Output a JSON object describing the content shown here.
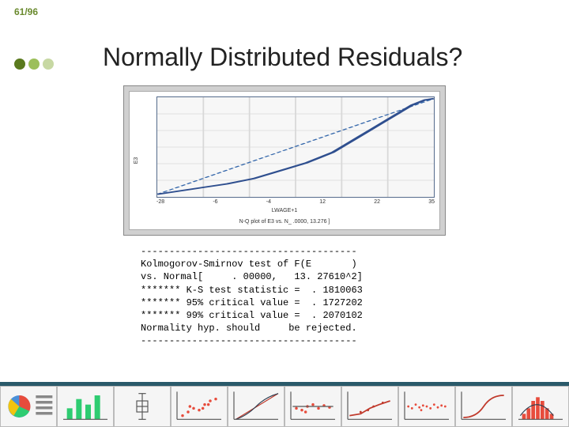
{
  "page_number": "61/96",
  "title": "Normally Distributed Residuals?",
  "dots": {
    "colors": [
      "#5a7a1e",
      "#9cbf5a",
      "#c7d8a3"
    ]
  },
  "chart": {
    "type": "line",
    "x_label": "LWAGE+1",
    "y_label": "E3",
    "caption": "N-Q plot of E3  vs. N_ .0000, 13.276 ]",
    "x_ticks": [
      "-28",
      "-6",
      "-4",
      "12",
      "22",
      "35"
    ],
    "xlim": [
      -28,
      35
    ],
    "ylim": [
      -3,
      35
    ],
    "curve": [
      [
        -28,
        -2
      ],
      [
        -20,
        0
      ],
      [
        -12,
        2
      ],
      [
        -6,
        4
      ],
      [
        -2,
        6
      ],
      [
        2,
        8
      ],
      [
        6,
        10
      ],
      [
        9,
        12
      ],
      [
        12,
        14
      ],
      [
        15,
        17
      ],
      [
        18,
        20
      ],
      [
        21,
        23
      ],
      [
        24,
        26
      ],
      [
        27,
        29
      ],
      [
        30,
        32
      ],
      [
        33,
        34
      ],
      [
        35,
        34.5
      ]
    ],
    "ref_line": [
      [
        -28,
        -2
      ],
      [
        35,
        34.5
      ]
    ],
    "curve_color": "#2f4f8f",
    "ref_color": "#3366aa",
    "grid_color": "#d8d8d8",
    "background_color": "#f7f7f7",
    "border_color": "#556b8c",
    "label_fontsize": 7
  },
  "test_output": {
    "rule": "--------------------------------------",
    "l1": "Kolmogorov-Smirnov test of F(E       )",
    "l2": "vs. Normal[     . 00000,   13. 27610^2]",
    "l3": "******* K-S test statistic =  . 1810063",
    "l4": "******* 95% critical value =  . 1727202",
    "l5": "******* 99% critical value =  . 2070102",
    "l6": "Normality hyp. should     be rejected.",
    "rule2": "--------------------------------------"
  },
  "thumbs": {
    "count": 10
  }
}
